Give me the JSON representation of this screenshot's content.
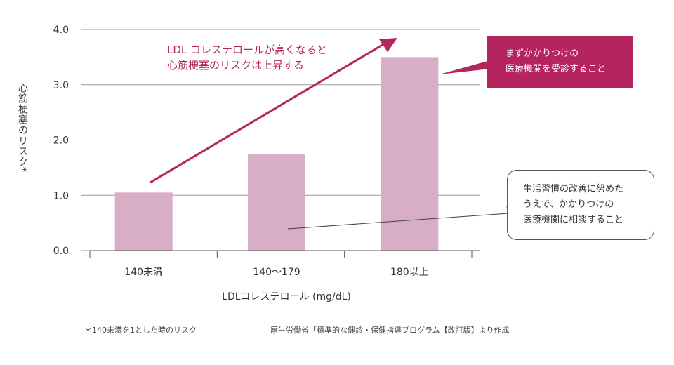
{
  "chart_data": {
    "type": "bar",
    "categories": [
      "140未満",
      "140〜179",
      "180以上"
    ],
    "values": [
      1.05,
      1.75,
      3.5
    ],
    "ylim": [
      0,
      4
    ],
    "yticks": [
      "0.0",
      "1.0",
      "2.0",
      "3.0",
      "4.0"
    ],
    "ytick_values": [
      0,
      1,
      2,
      3,
      4
    ],
    "xlabel": "LDLコレステロール (mg/dL)",
    "ylabel": "心筋梗塞のリスク*",
    "grid": "horizontal",
    "colors": {
      "bar": "#d8aec6",
      "accent": "#b5245e",
      "grid": "#9a9a9a"
    }
  },
  "annotations": {
    "trend_line1": "LDL コレステロールが高くなると",
    "trend_line2": "心筋梗塞のリスクは上昇する",
    "callout_red_line1": "まずかかりつけの",
    "callout_red_line2": "医療機関を受診すること",
    "callout_white_line1": "生活習慣の改善に努めた",
    "callout_white_line2": "うえで、かかりつけの",
    "callout_white_line3": "医療機関に相談すること"
  },
  "footer": {
    "footnote": "＊140未満を1とした時のリスク",
    "source": "厚生労働省「標準的な健診・保健指導プログラム【改訂版】より作成"
  }
}
